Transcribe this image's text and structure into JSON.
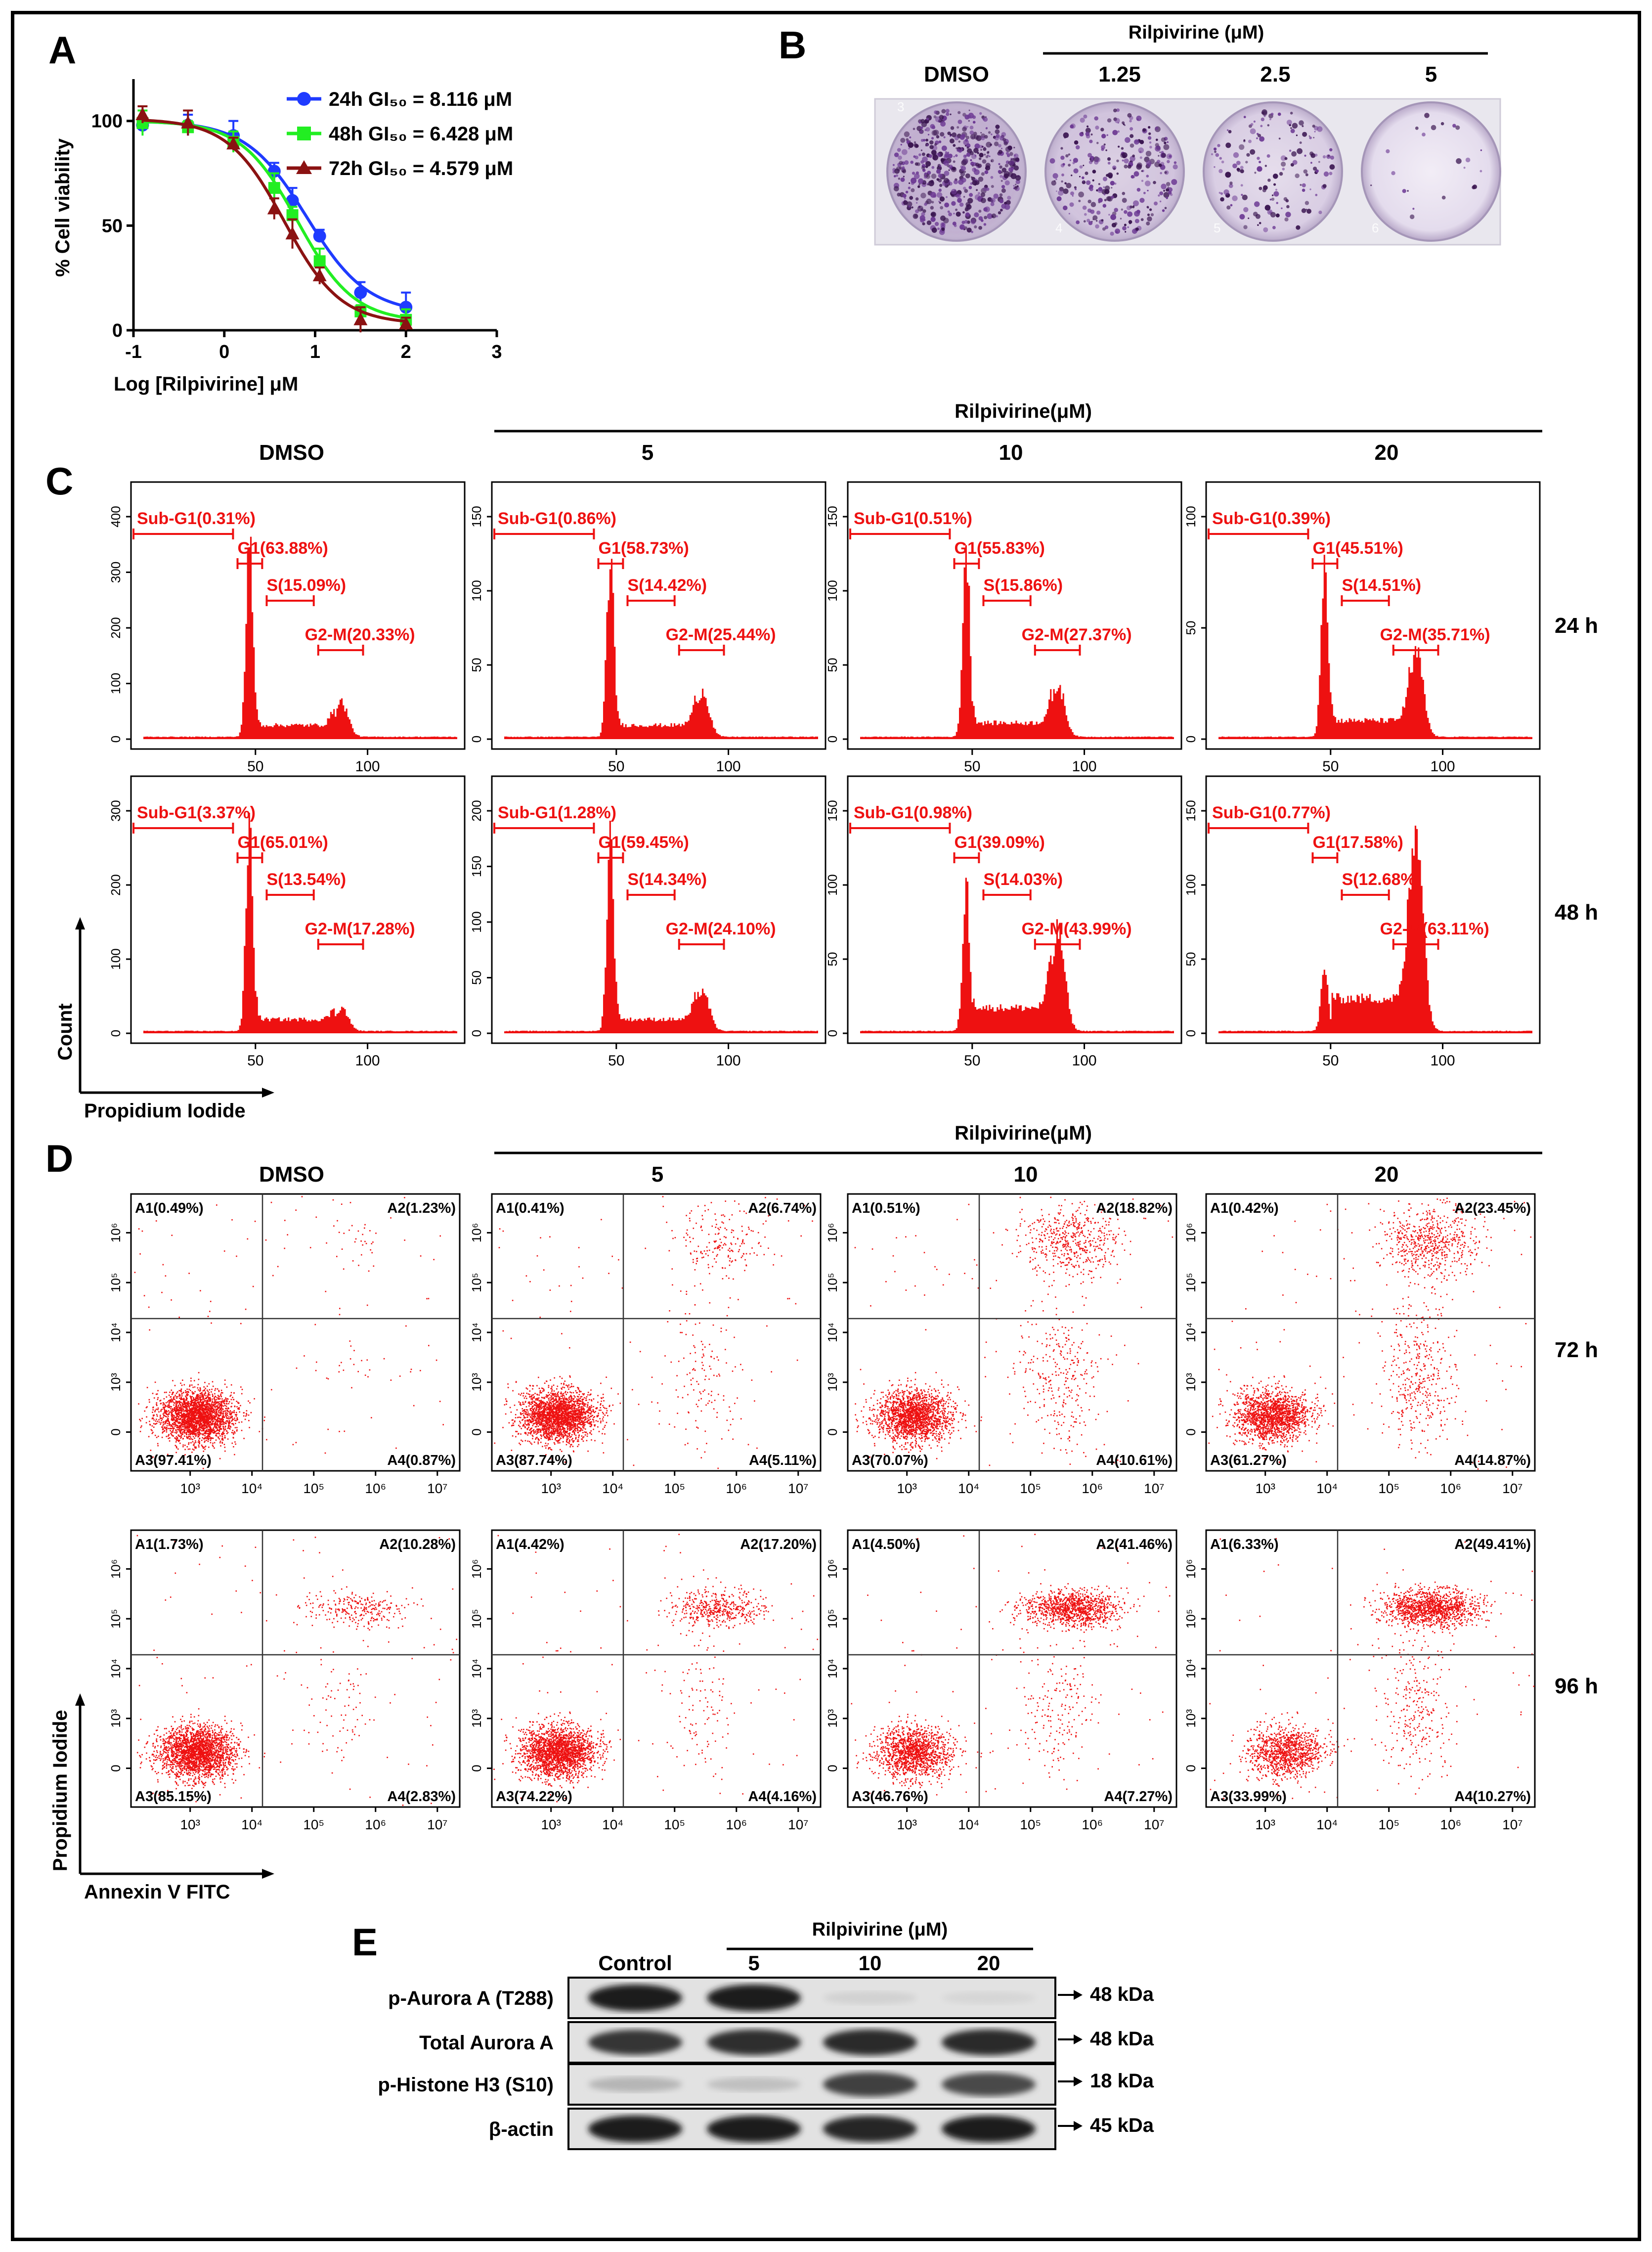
{
  "colors": {
    "red": "#ee1111",
    "blue": "#1f3bff",
    "green": "#22ee22",
    "darkred": "#8b1212",
    "crystal": "#5a2a7a"
  },
  "panelA": {
    "label": "A",
    "chart_data": {
      "type": "line",
      "xlabel": "Log [Rilpivirine] μM",
      "ylabel": "% Cell viability",
      "xlim": [
        -1,
        3
      ],
      "ylim": [
        0,
        120
      ],
      "xticks": [
        "-1",
        "0",
        "1",
        "2",
        "3"
      ],
      "yticks": [
        "0",
        "50",
        "100"
      ],
      "x": [
        -0.9,
        -0.4,
        0.1,
        0.55,
        0.75,
        1.05,
        1.5,
        2.0
      ],
      "series": [
        {
          "name": "24h",
          "legend": "24h GI₅₀ = 8.116 μM",
          "color": "#1f3bff",
          "marker": "circle",
          "values": [
            98,
            98,
            93,
            76,
            62,
            45,
            18,
            11
          ],
          "gi50": 0.909,
          "top": 100,
          "bottom": 8,
          "hill": 1.3
        },
        {
          "name": "48h",
          "legend": "48h GI₅₀ = 6.428 μM",
          "color": "#22ee22",
          "marker": "square",
          "values": [
            99,
            97,
            90,
            68,
            55,
            33,
            9,
            5
          ],
          "gi50": 0.808,
          "top": 100,
          "bottom": 4,
          "hill": 1.4
        },
        {
          "name": "72h",
          "legend": "72h GI₅₀ = 4.579 μM",
          "color": "#8b1212",
          "marker": "triangle",
          "values": [
            103,
            99,
            89,
            58,
            46,
            26,
            5,
            3
          ],
          "gi50": 0.661,
          "top": 101,
          "bottom": 3,
          "hill": 1.4
        }
      ]
    }
  },
  "panelB": {
    "label": "B",
    "group_label": "Rilpivirine (μM)",
    "wells": [
      {
        "label": "DMSO",
        "number": "3",
        "density": 1.0
      },
      {
        "label": "1.25",
        "number": "4",
        "density": 0.55
      },
      {
        "label": "2.5",
        "number": "5",
        "density": 0.3
      },
      {
        "label": "5",
        "number": "6",
        "density": 0.03
      }
    ]
  },
  "panelC": {
    "label": "C",
    "group_label": "Rilpivirine(μM)",
    "columns": [
      "DMSO",
      "5",
      "10",
      "20"
    ],
    "rows": [
      "24 h",
      "48 h"
    ],
    "xlabel": "Propidium Iodide",
    "ylabel": "Count",
    "plots": [
      {
        "yticks": [
          "0",
          "100",
          "200",
          "300",
          "400"
        ],
        "g1h": 0.82,
        "g2h": 0.15,
        "sh": 0.05,
        "subg1": "Sub-G1(0.31%)",
        "g1": "G1(63.88%)",
        "s": "S(15.09%)",
        "g2m": "G2-M(20.33%)"
      },
      {
        "yticks": [
          "0",
          "50",
          "100",
          "150"
        ],
        "g1h": 0.78,
        "g2h": 0.2,
        "sh": 0.05,
        "subg1": "Sub-G1(0.86%)",
        "g1": "G1(58.73%)",
        "s": "S(14.42%)",
        "g2m": "G2-M(25.44%)"
      },
      {
        "yticks": [
          "0",
          "50",
          "100",
          "150"
        ],
        "g1h": 0.82,
        "g2h": 0.22,
        "sh": 0.06,
        "subg1": "Sub-G1(0.51%)",
        "g1": "G1(55.83%)",
        "s": "S(15.86%)",
        "g2m": "G2-M(27.37%)"
      },
      {
        "yticks": [
          "0",
          "50",
          "100"
        ],
        "g1h": 0.8,
        "g2h": 0.36,
        "sh": 0.07,
        "subg1": "Sub-G1(0.39%)",
        "g1": "G1(45.51%)",
        "s": "S(14.51%)",
        "g2m": "G2-M(35.71%)"
      },
      {
        "yticks": [
          "0",
          "100",
          "200",
          "300"
        ],
        "g1h": 0.88,
        "g2h": 0.1,
        "sh": 0.05,
        "subg1": "Sub-G1(3.37%)",
        "g1": "G1(65.01%)",
        "s": "S(13.54%)",
        "g2m": "G2-M(17.28%)"
      },
      {
        "yticks": [
          "0",
          "50",
          "100",
          "150",
          "200"
        ],
        "g1h": 0.84,
        "g2h": 0.18,
        "sh": 0.05,
        "subg1": "Sub-G1(1.28%)",
        "g1": "G1(59.45%)",
        "s": "S(14.34%)",
        "g2m": "G2-M(24.10%)"
      },
      {
        "yticks": [
          "0",
          "50",
          "100",
          "150"
        ],
        "g1h": 0.62,
        "g2h": 0.43,
        "sh": 0.1,
        "subg1": "Sub-G1(0.98%)",
        "g1": "G1(39.09%)",
        "s": "S(14.03%)",
        "g2m": "G2-M(43.99%)"
      },
      {
        "yticks": [
          "0",
          "50",
          "100",
          "150"
        ],
        "g1h": 0.26,
        "g2h": 0.9,
        "sh": 0.14,
        "subg1": "Sub-G1(0.77%)",
        "g1": "G1(17.58%)",
        "s": "S(12.68%)",
        "g2m": "G2-M(63.11%)"
      }
    ],
    "xticks": [
      "50",
      "100"
    ]
  },
  "panelD": {
    "label": "D",
    "group_label": "Rilpivirine(μM)",
    "columns": [
      "DMSO",
      "5",
      "10",
      "20"
    ],
    "rows": [
      "72 h",
      "96 h"
    ],
    "xlabel": "Annexin V FITC",
    "ylabel": "Propidium Iodide",
    "xticks": [
      "10³",
      "10⁴",
      "10⁵",
      "10⁶",
      "10⁷"
    ],
    "yticks": [
      "0",
      "10³",
      "10⁴",
      "10⁵",
      "10⁶"
    ],
    "plots": [
      {
        "a1": "A1(0.49%)",
        "a2": "A2(1.23%)",
        "a3": "A3(97.41%)",
        "a4": "A4(0.87%)",
        "late": 0.012,
        "early": 0.009
      },
      {
        "a1": "A1(0.41%)",
        "a2": "A2(6.74%)",
        "a3": "A3(87.74%)",
        "a4": "A4(5.11%)",
        "late": 0.07,
        "early": 0.05
      },
      {
        "a1": "A1(0.51%)",
        "a2": "A2(18.82%)",
        "a3": "A3(70.07%)",
        "a4": "A4(10.61%)",
        "late": 0.19,
        "early": 0.11
      },
      {
        "a1": "A1(0.42%)",
        "a2": "A2(23.45%)",
        "a3": "A3(61.27%)",
        "a4": "A4(14.87%)",
        "late": 0.23,
        "early": 0.15
      },
      {
        "a1": "A1(1.73%)",
        "a2": "A2(10.28%)",
        "a3": "A3(85.15%)",
        "a4": "A4(2.83%)",
        "late": 0.1,
        "early": 0.03
      },
      {
        "a1": "A1(4.42%)",
        "a2": "A2(17.20%)",
        "a3": "A3(74.22%)",
        "a4": "A4(4.16%)",
        "late": 0.17,
        "early": 0.04
      },
      {
        "a1": "A1(4.50%)",
        "a2": "A2(41.46%)",
        "a3": "A3(46.76%)",
        "a4": "A4(7.27%)",
        "late": 0.41,
        "early": 0.07
      },
      {
        "a1": "A1(6.33%)",
        "a2": "A2(49.41%)",
        "a3": "A3(33.99%)",
        "a4": "A4(10.27%)",
        "late": 0.49,
        "early": 0.1
      }
    ]
  },
  "panelE": {
    "label": "E",
    "group_label": "Rilpivirine (μM)",
    "lanes": [
      "Control",
      "5",
      "10",
      "20"
    ],
    "blots": [
      {
        "name": "p-Aurora A (T288)",
        "size": "48 kDa",
        "intensity": [
          0.95,
          0.95,
          0.12,
          0.1
        ]
      },
      {
        "name": "Total Aurora A",
        "size": "48 kDa",
        "intensity": [
          0.85,
          0.88,
          0.9,
          0.9
        ]
      },
      {
        "name": "p-Histone H3 (S10)",
        "size": "18 kDa",
        "intensity": [
          0.25,
          0.2,
          0.8,
          0.75
        ]
      },
      {
        "name": "β-actin",
        "size": "45 kDa",
        "intensity": [
          0.95,
          0.95,
          0.92,
          0.95
        ]
      }
    ]
  }
}
